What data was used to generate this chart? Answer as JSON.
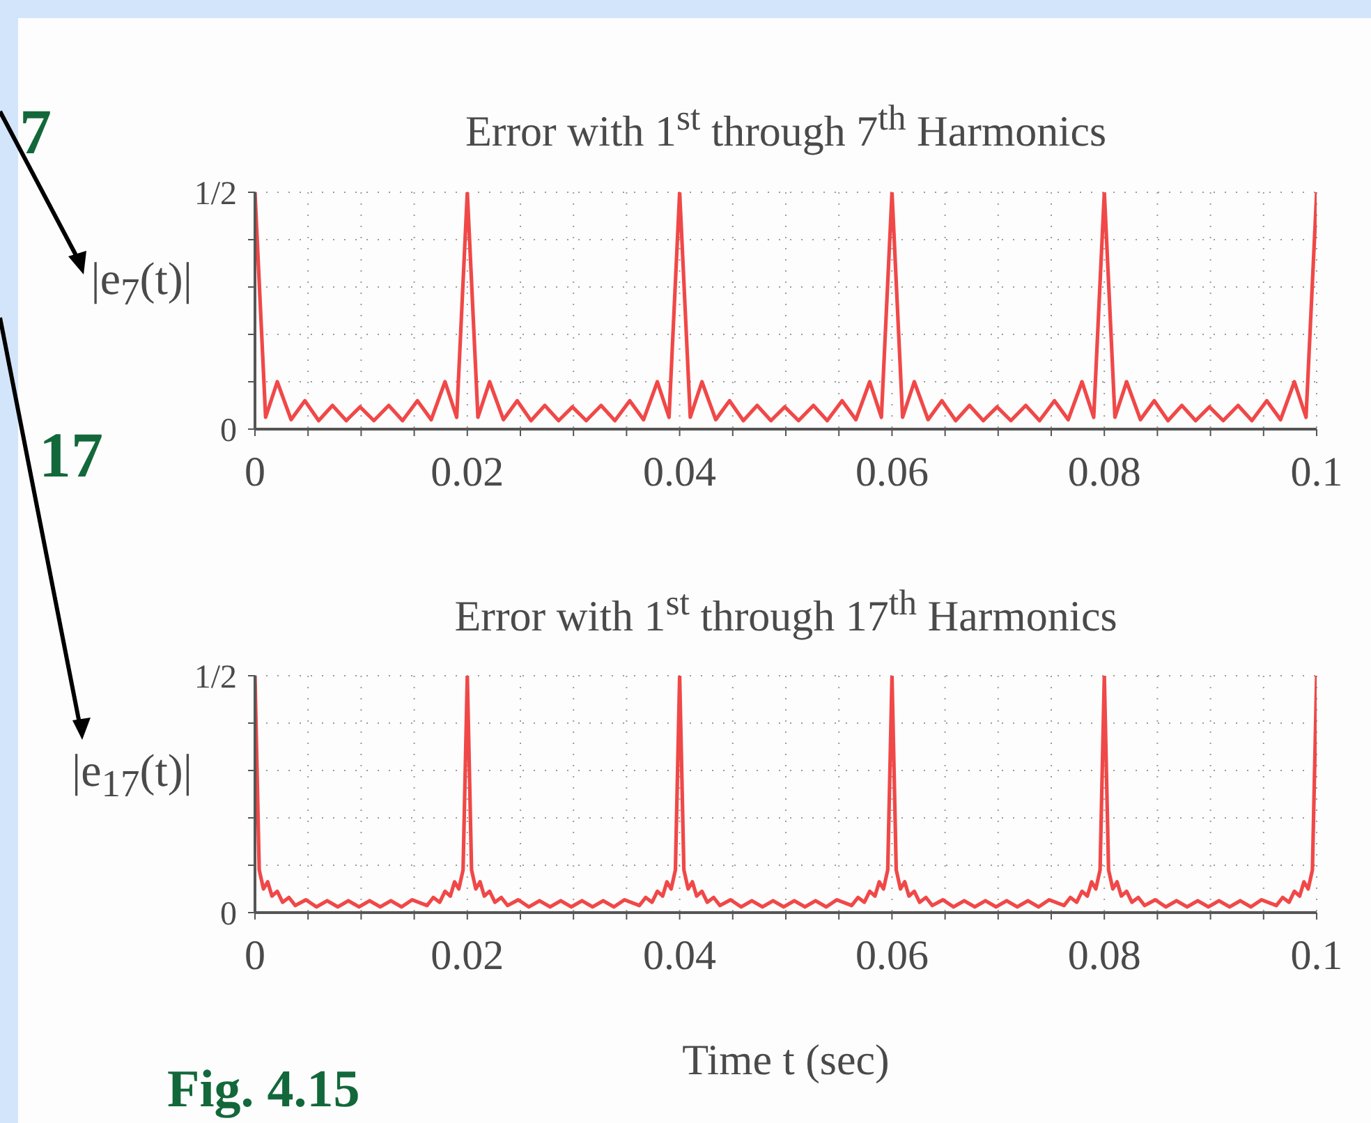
{
  "chart_data": [
    {
      "type": "line",
      "title": "Error with 1$^{st}$ through 7$^{th}$ Harmonics",
      "ylabel": "|e$_{7}$(t)|",
      "annotations": [
        "7"
      ],
      "xlim": [
        0,
        0.1
      ],
      "ylim": [
        0,
        0.5
      ],
      "xticks": [
        0,
        {
          "value": 0.005,
          "label": null
        },
        {
          "value": 0.01,
          "label": null
        },
        {
          "value": 0.015,
          "label": null
        },
        0.02,
        {
          "value": 0.025,
          "label": null
        },
        {
          "value": 0.03,
          "label": null
        },
        {
          "value": 0.035,
          "label": null
        },
        0.04,
        {
          "value": 0.045,
          "label": null
        },
        {
          "value": 0.05,
          "label": null
        },
        {
          "value": 0.055,
          "label": null
        },
        0.06,
        {
          "value": 0.065,
          "label": null
        },
        {
          "value": 0.07,
          "label": null
        },
        {
          "value": 0.075,
          "label": null
        },
        0.08,
        {
          "value": 0.085,
          "label": null
        },
        {
          "value": 0.09,
          "label": null
        },
        {
          "value": 0.095,
          "label": null
        },
        0.1
      ],
      "yticks": [
        0,
        {
          "value": 0.1,
          "label": null
        },
        {
          "value": 0.2,
          "label": null
        },
        {
          "value": 0.3,
          "label": null
        },
        {
          "value": 0.4,
          "label": null
        },
        {
          "value": 0.5,
          "label": "1/2"
        }
      ],
      "grid": true,
      "legend": false,
      "marker": "none",
      "line_style": "solid",
      "series": [
        {
          "color": "#f04848",
          "x": [
            0,
            0.001,
            0.0021,
            0.0034,
            0.0047,
            0.006,
            0.0073,
            0.0086,
            0.0099,
            0.0112,
            0.0126,
            0.0139,
            0.0153,
            0.0166,
            0.0179,
            0.019,
            0.02,
            0.021,
            0.0221,
            0.0234,
            0.0247,
            0.026,
            0.0273,
            0.0286,
            0.0299,
            0.0312,
            0.0326,
            0.0339,
            0.0353,
            0.0366,
            0.0379,
            0.039,
            0.04,
            0.041,
            0.0421,
            0.0434,
            0.0447,
            0.046,
            0.0473,
            0.0486,
            0.0499,
            0.0512,
            0.0526,
            0.0539,
            0.0553,
            0.0566,
            0.0579,
            0.059,
            0.06,
            0.061,
            0.0621,
            0.0634,
            0.0647,
            0.066,
            0.0673,
            0.0686,
            0.0699,
            0.0712,
            0.0726,
            0.0739,
            0.0753,
            0.0766,
            0.0779,
            0.079,
            0.08,
            0.081,
            0.0821,
            0.0834,
            0.0847,
            0.086,
            0.0873,
            0.0886,
            0.0899,
            0.0912,
            0.0926,
            0.0939,
            0.0953,
            0.0966,
            0.0979,
            0.099,
            0.1
          ],
          "values": [
            0.5,
            0.025,
            0.1,
            0.02,
            0.06,
            0.018,
            0.05,
            0.018,
            0.047,
            0.018,
            0.05,
            0.018,
            0.06,
            0.02,
            0.1,
            0.025,
            0.5,
            0.025,
            0.1,
            0.02,
            0.06,
            0.018,
            0.05,
            0.018,
            0.047,
            0.018,
            0.05,
            0.018,
            0.06,
            0.02,
            0.1,
            0.025,
            0.5,
            0.025,
            0.1,
            0.02,
            0.06,
            0.018,
            0.05,
            0.018,
            0.047,
            0.018,
            0.05,
            0.018,
            0.06,
            0.02,
            0.1,
            0.025,
            0.5,
            0.025,
            0.1,
            0.02,
            0.06,
            0.018,
            0.05,
            0.018,
            0.047,
            0.018,
            0.05,
            0.018,
            0.06,
            0.02,
            0.1,
            0.025,
            0.5,
            0.025,
            0.1,
            0.02,
            0.06,
            0.018,
            0.05,
            0.018,
            0.047,
            0.018,
            0.05,
            0.018,
            0.06,
            0.02,
            0.1,
            0.025,
            0.5
          ]
        }
      ]
    },
    {
      "type": "line",
      "title": "Error with 1$^{st}$ through 17$^{th}$ Harmonics",
      "ylabel": "|e$_{17}$(t)|",
      "xlabel": "Time t (sec)",
      "annotations": [
        "17",
        "Fig. 4.15"
      ],
      "xlim": [
        0,
        0.1
      ],
      "ylim": [
        0,
        0.5
      ],
      "xticks": [
        0,
        {
          "value": 0.005,
          "label": null
        },
        {
          "value": 0.01,
          "label": null
        },
        {
          "value": 0.015,
          "label": null
        },
        0.02,
        {
          "value": 0.025,
          "label": null
        },
        {
          "value": 0.03,
          "label": null
        },
        {
          "value": 0.035,
          "label": null
        },
        0.04,
        {
          "value": 0.045,
          "label": null
        },
        {
          "value": 0.05,
          "label": null
        },
        {
          "value": 0.055,
          "label": null
        },
        0.06,
        {
          "value": 0.065,
          "label": null
        },
        {
          "value": 0.07,
          "label": null
        },
        {
          "value": 0.075,
          "label": null
        },
        0.08,
        {
          "value": 0.085,
          "label": null
        },
        {
          "value": 0.09,
          "label": null
        },
        {
          "value": 0.095,
          "label": null
        },
        0.1
      ],
      "yticks": [
        0,
        {
          "value": 0.1,
          "label": null
        },
        {
          "value": 0.2,
          "label": null
        },
        {
          "value": 0.3,
          "label": null
        },
        {
          "value": 0.4,
          "label": null
        },
        {
          "value": 0.5,
          "label": "1/2"
        }
      ],
      "grid": true,
      "legend": false,
      "marker": "none",
      "line_style": "solid",
      "series": [
        {
          "color": "#f04848",
          "x": [
            0,
            0.0004,
            0.0008,
            0.0012,
            0.0016,
            0.0021,
            0.0026,
            0.0032,
            0.0038,
            0.0048,
            0.0058,
            0.0068,
            0.0078,
            0.0088,
            0.0098,
            0.0108,
            0.0118,
            0.0128,
            0.0138,
            0.0148,
            0.0162,
            0.0168,
            0.0174,
            0.0179,
            0.0184,
            0.0188,
            0.0192,
            0.0196,
            0.02,
            0.0204,
            0.0208,
            0.0212,
            0.0216,
            0.0221,
            0.0226,
            0.0232,
            0.0238,
            0.0248,
            0.0258,
            0.0268,
            0.0278,
            0.0288,
            0.0298,
            0.0308,
            0.0318,
            0.0328,
            0.0338,
            0.0348,
            0.0362,
            0.0368,
            0.0374,
            0.0379,
            0.0384,
            0.0388,
            0.0392,
            0.0396,
            0.04,
            0.0404,
            0.0408,
            0.0412,
            0.0416,
            0.0421,
            0.0426,
            0.0432,
            0.0438,
            0.0448,
            0.0458,
            0.0468,
            0.0478,
            0.0488,
            0.0498,
            0.0508,
            0.0518,
            0.0528,
            0.0538,
            0.0548,
            0.0562,
            0.0568,
            0.0574,
            0.0579,
            0.0584,
            0.0588,
            0.0592,
            0.0596,
            0.06,
            0.0604,
            0.0608,
            0.0612,
            0.0616,
            0.0621,
            0.0626,
            0.0632,
            0.0638,
            0.0648,
            0.0658,
            0.0668,
            0.0678,
            0.0688,
            0.0698,
            0.0708,
            0.0718,
            0.0728,
            0.0738,
            0.0748,
            0.0762,
            0.0768,
            0.0774,
            0.0779,
            0.0784,
            0.0788,
            0.0792,
            0.0796,
            0.08,
            0.0804,
            0.0808,
            0.0812,
            0.0816,
            0.0821,
            0.0826,
            0.0832,
            0.0838,
            0.0848,
            0.0858,
            0.0868,
            0.0878,
            0.0888,
            0.0898,
            0.0908,
            0.0918,
            0.0928,
            0.0938,
            0.0948,
            0.0962,
            0.0968,
            0.0974,
            0.0979,
            0.0984,
            0.0988,
            0.0992,
            0.0996,
            0.1
          ],
          "values": [
            0.5,
            0.09,
            0.05,
            0.065,
            0.035,
            0.045,
            0.022,
            0.032,
            0.015,
            0.027,
            0.012,
            0.025,
            0.012,
            0.025,
            0.012,
            0.025,
            0.012,
            0.025,
            0.012,
            0.027,
            0.015,
            0.032,
            0.022,
            0.045,
            0.035,
            0.065,
            0.05,
            0.09,
            0.5,
            0.09,
            0.05,
            0.065,
            0.035,
            0.045,
            0.022,
            0.032,
            0.015,
            0.027,
            0.012,
            0.025,
            0.012,
            0.025,
            0.012,
            0.025,
            0.012,
            0.025,
            0.012,
            0.027,
            0.015,
            0.032,
            0.022,
            0.045,
            0.035,
            0.065,
            0.05,
            0.09,
            0.5,
            0.09,
            0.05,
            0.065,
            0.035,
            0.045,
            0.022,
            0.032,
            0.015,
            0.027,
            0.012,
            0.025,
            0.012,
            0.025,
            0.012,
            0.025,
            0.012,
            0.025,
            0.012,
            0.027,
            0.015,
            0.032,
            0.022,
            0.045,
            0.035,
            0.065,
            0.05,
            0.09,
            0.5,
            0.09,
            0.05,
            0.065,
            0.035,
            0.045,
            0.022,
            0.032,
            0.015,
            0.027,
            0.012,
            0.025,
            0.012,
            0.025,
            0.012,
            0.025,
            0.012,
            0.025,
            0.012,
            0.027,
            0.015,
            0.032,
            0.022,
            0.045,
            0.035,
            0.065,
            0.05,
            0.09,
            0.5,
            0.09,
            0.05,
            0.065,
            0.035,
            0.045,
            0.022,
            0.032,
            0.015,
            0.027,
            0.012,
            0.025,
            0.012,
            0.025,
            0.012,
            0.025,
            0.012,
            0.025,
            0.012,
            0.027,
            0.015,
            0.032,
            0.022,
            0.045,
            0.035,
            0.065,
            0.05,
            0.09,
            0.5
          ]
        }
      ]
    }
  ]
}
